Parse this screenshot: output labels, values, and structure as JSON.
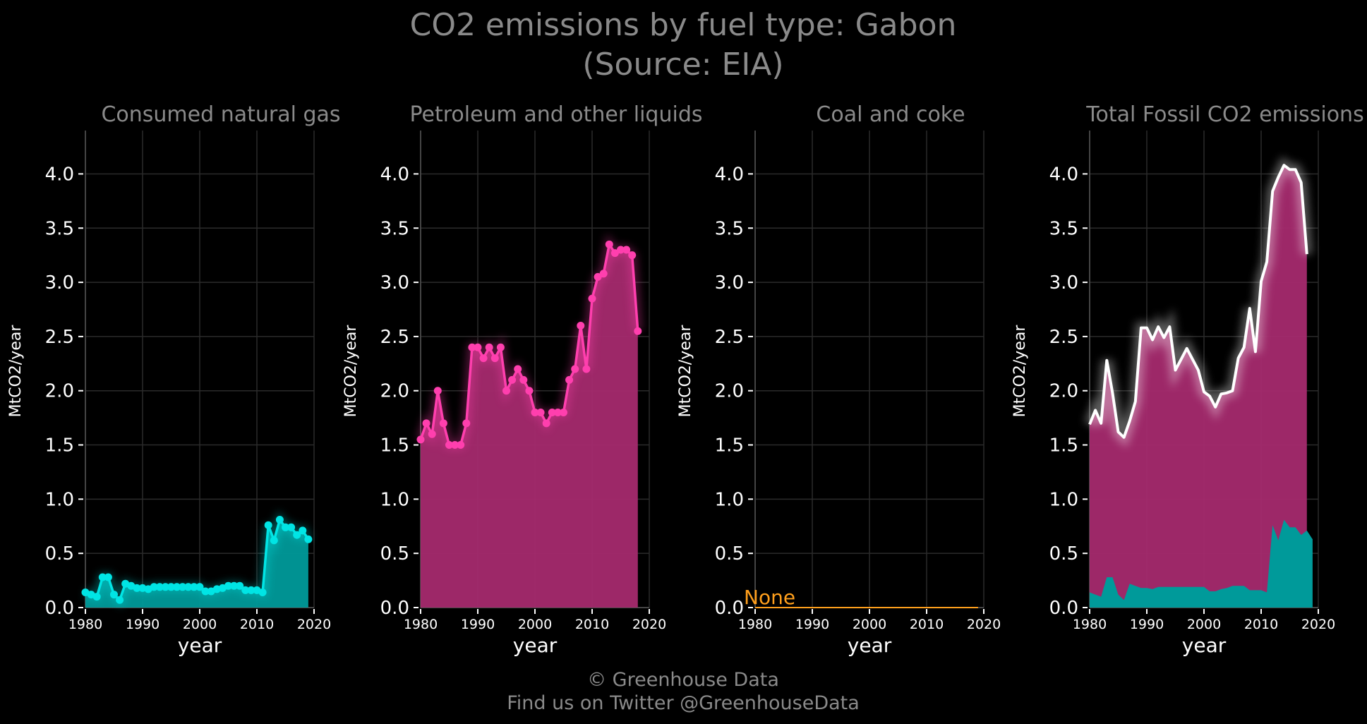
{
  "title_line1": "CO2 emissions by fuel type: Gabon",
  "title_line2": "(Source: EIA)",
  "credit_line1": "© Greenhouse Data",
  "credit_line2": "Find us on Twitter @GreenhouseData",
  "colors": {
    "gas": "#00e5e5",
    "gas_fill": "#009a9a",
    "petroleum": "#ff3fae",
    "petroleum_fill": "#a52a6e",
    "coal": "#ff9f1c",
    "total": "#ffffff"
  },
  "chart_data": [
    {
      "type": "area",
      "title": "Consumed natural gas",
      "xlabel": "year",
      "ylabel": "MtCO2/year",
      "xlim": [
        1980,
        2020
      ],
      "ylim": [
        0,
        4.4
      ],
      "xticks": [
        1980,
        1990,
        2000,
        2010,
        2020
      ],
      "yticks": [
        0.0,
        0.5,
        1.0,
        1.5,
        2.0,
        2.5,
        3.0,
        3.5,
        4.0
      ],
      "grid": true,
      "series": [
        {
          "x": [
            1980,
            1981,
            1982,
            1983,
            1984,
            1985,
            1986,
            1987,
            1988,
            1989,
            1990,
            1991,
            1992,
            1993,
            1994,
            1995,
            1996,
            1997,
            1998,
            1999,
            2000,
            2001,
            2002,
            2003,
            2004,
            2005,
            2006,
            2007,
            2008,
            2009,
            2010,
            2011,
            2012,
            2013,
            2014,
            2015,
            2016,
            2017,
            2018,
            2019
          ],
          "values": [
            0.14,
            0.12,
            0.1,
            0.28,
            0.28,
            0.12,
            0.07,
            0.22,
            0.2,
            0.18,
            0.18,
            0.17,
            0.19,
            0.19,
            0.19,
            0.19,
            0.19,
            0.19,
            0.19,
            0.19,
            0.19,
            0.15,
            0.15,
            0.17,
            0.18,
            0.2,
            0.2,
            0.2,
            0.16,
            0.16,
            0.16,
            0.14,
            0.76,
            0.62,
            0.81,
            0.74,
            0.74,
            0.67,
            0.71,
            0.63
          ]
        }
      ]
    },
    {
      "type": "area",
      "title": "Petroleum and other liquids",
      "xlabel": "year",
      "ylabel": "MtCO2/year",
      "xlim": [
        1980,
        2020
      ],
      "ylim": [
        0,
        4.4
      ],
      "xticks": [
        1980,
        1990,
        2000,
        2010,
        2020
      ],
      "yticks": [
        0.0,
        0.5,
        1.0,
        1.5,
        2.0,
        2.5,
        3.0,
        3.5,
        4.0
      ],
      "grid": true,
      "series": [
        {
          "x": [
            1980,
            1981,
            1982,
            1983,
            1984,
            1985,
            1986,
            1987,
            1988,
            1989,
            1990,
            1991,
            1992,
            1993,
            1994,
            1995,
            1996,
            1997,
            1998,
            1999,
            2000,
            2001,
            2002,
            2003,
            2004,
            2005,
            2006,
            2007,
            2008,
            2009,
            2010,
            2011,
            2012,
            2013,
            2014,
            2015,
            2016,
            2017,
            2018
          ],
          "values": [
            1.55,
            1.7,
            1.6,
            2.0,
            1.7,
            1.5,
            1.5,
            1.5,
            1.7,
            2.4,
            2.4,
            2.3,
            2.4,
            2.3,
            2.4,
            2.0,
            2.1,
            2.2,
            2.1,
            2.0,
            1.8,
            1.8,
            1.7,
            1.8,
            1.8,
            1.8,
            2.1,
            2.2,
            2.6,
            2.2,
            2.85,
            3.05,
            3.08,
            3.35,
            3.27,
            3.3,
            3.3,
            3.25,
            2.55
          ]
        }
      ]
    },
    {
      "type": "line",
      "title": "Coal and coke",
      "xlabel": "year",
      "ylabel": "MtCO2/year",
      "xlim": [
        1980,
        2020
      ],
      "ylim": [
        0,
        4.4
      ],
      "xticks": [
        1980,
        1990,
        2000,
        2010,
        2020
      ],
      "yticks": [
        0.0,
        0.5,
        1.0,
        1.5,
        2.0,
        2.5,
        3.0,
        3.5,
        4.0
      ],
      "grid": true,
      "annotation": "None",
      "series": [
        {
          "x": [
            1980,
            2019
          ],
          "values": [
            0,
            0
          ]
        }
      ]
    },
    {
      "type": "area",
      "title": "Total Fossil CO2 emissions",
      "xlabel": "year",
      "ylabel": "MtCO2/year",
      "xlim": [
        1980,
        2020
      ],
      "ylim": [
        0,
        4.4
      ],
      "xticks": [
        1980,
        1990,
        2000,
        2010,
        2020
      ],
      "yticks": [
        0.0,
        0.5,
        1.0,
        1.5,
        2.0,
        2.5,
        3.0,
        3.5,
        4.0
      ],
      "grid": true,
      "stacked": true,
      "series": [
        {
          "x": [
            1980,
            1981,
            1982,
            1983,
            1984,
            1985,
            1986,
            1987,
            1988,
            1989,
            1990,
            1991,
            1992,
            1993,
            1994,
            1995,
            1996,
            1997,
            1998,
            1999,
            2000,
            2001,
            2002,
            2003,
            2004,
            2005,
            2006,
            2007,
            2008,
            2009,
            2010,
            2011,
            2012,
            2013,
            2014,
            2015,
            2016,
            2017,
            2018,
            2019
          ],
          "values": [
            0.14,
            0.12,
            0.1,
            0.28,
            0.28,
            0.12,
            0.07,
            0.22,
            0.2,
            0.18,
            0.18,
            0.17,
            0.19,
            0.19,
            0.19,
            0.19,
            0.19,
            0.19,
            0.19,
            0.19,
            0.19,
            0.15,
            0.15,
            0.17,
            0.18,
            0.2,
            0.2,
            0.2,
            0.16,
            0.16,
            0.16,
            0.14,
            0.76,
            0.62,
            0.81,
            0.74,
            0.74,
            0.67,
            0.71,
            0.63
          ]
        },
        {
          "x": [
            1980,
            1981,
            1982,
            1983,
            1984,
            1985,
            1986,
            1987,
            1988,
            1989,
            1990,
            1991,
            1992,
            1993,
            1994,
            1995,
            1996,
            1997,
            1998,
            1999,
            2000,
            2001,
            2002,
            2003,
            2004,
            2005,
            2006,
            2007,
            2008,
            2009,
            2010,
            2011,
            2012,
            2013,
            2014,
            2015,
            2016,
            2017,
            2018
          ],
          "values": [
            1.55,
            1.7,
            1.6,
            2.0,
            1.7,
            1.5,
            1.5,
            1.5,
            1.7,
            2.4,
            2.4,
            2.3,
            2.4,
            2.3,
            2.4,
            2.0,
            2.1,
            2.2,
            2.1,
            2.0,
            1.8,
            1.8,
            1.7,
            1.8,
            1.8,
            1.8,
            2.1,
            2.2,
            2.6,
            2.2,
            2.85,
            3.05,
            3.08,
            3.35,
            3.27,
            3.3,
            3.3,
            3.25,
            2.55
          ]
        },
        {
          "x": [
            1980,
            1981,
            1982,
            1983,
            1984,
            1985,
            1986,
            1987,
            1988,
            1989,
            1990,
            1991,
            1992,
            1993,
            1994,
            1995,
            1996,
            1997,
            1998,
            1999,
            2000,
            2001,
            2002,
            2003,
            2004,
            2005,
            2006,
            2007,
            2008,
            2009,
            2010,
            2011,
            2012,
            2013,
            2014,
            2015,
            2016,
            2017,
            2018
          ],
          "values": [
            1.69,
            1.82,
            1.7,
            2.28,
            1.98,
            1.62,
            1.57,
            1.72,
            1.9,
            2.58,
            2.58,
            2.47,
            2.59,
            2.49,
            2.59,
            2.19,
            2.29,
            2.39,
            2.29,
            2.19,
            1.99,
            1.95,
            1.85,
            1.97,
            1.98,
            2.0,
            2.3,
            2.4,
            2.76,
            2.36,
            3.01,
            3.19,
            3.84,
            3.97,
            4.08,
            4.04,
            4.04,
            3.92,
            3.26
          ]
        }
      ]
    }
  ]
}
